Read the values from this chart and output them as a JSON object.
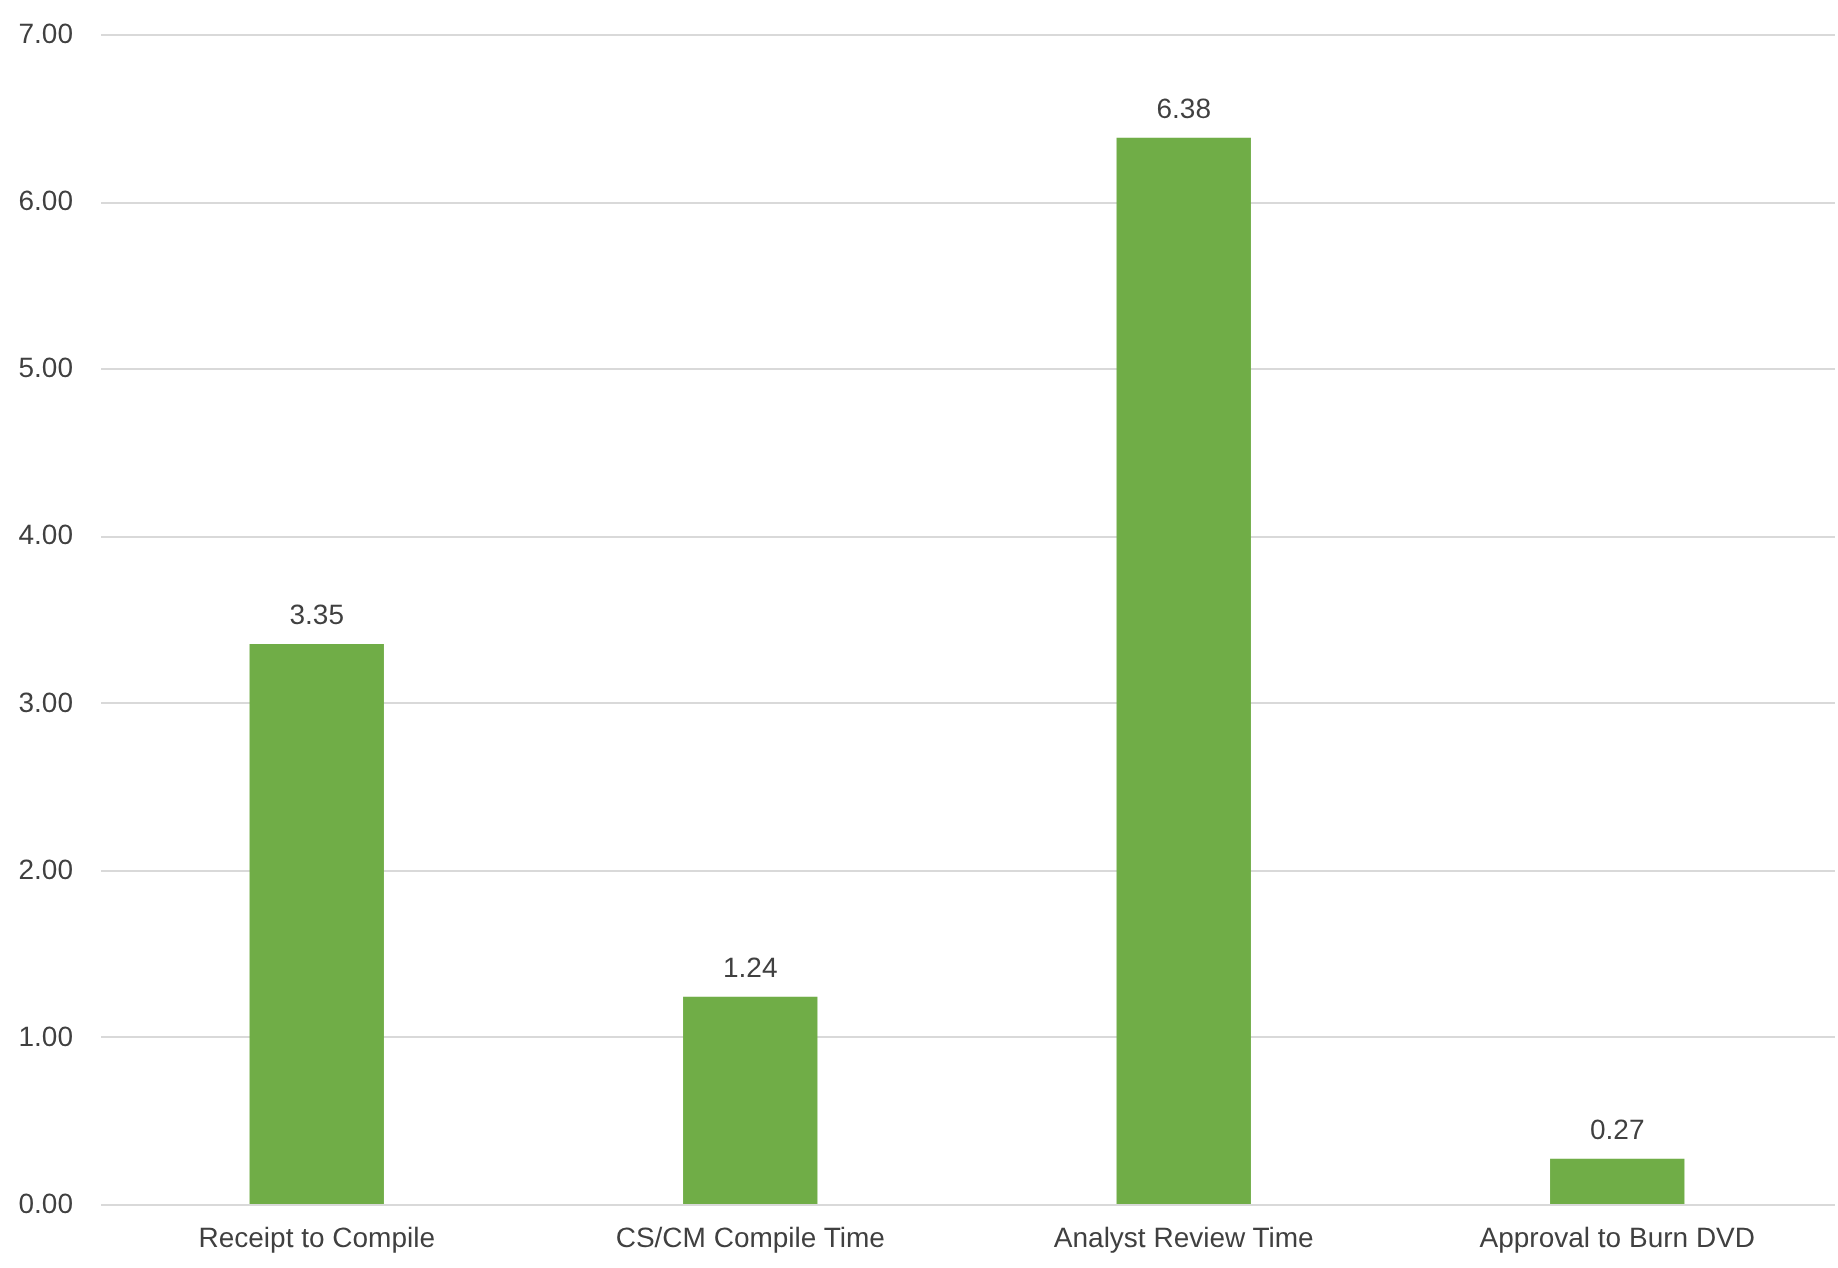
{
  "chart_data": {
    "type": "bar",
    "categories": [
      "Receipt to Compile",
      "CS/CM Compile Time",
      "Analyst Review Time",
      "Approval to Burn DVD"
    ],
    "values": [
      3.35,
      1.24,
      6.38,
      0.27
    ],
    "color": "#70ad47",
    "ylim": [
      0,
      7
    ],
    "yticks": [
      {
        "value": 0,
        "label": "0.00"
      },
      {
        "value": 1,
        "label": "1.00"
      },
      {
        "value": 2,
        "label": "2.00"
      },
      {
        "value": 3,
        "label": "3.00"
      },
      {
        "value": 4,
        "label": "4.00"
      },
      {
        "value": 5,
        "label": "5.00"
      },
      {
        "value": 6,
        "label": "6.00"
      },
      {
        "value": 7,
        "label": "7.00"
      }
    ],
    "grid": "y",
    "data_labels": true
  }
}
